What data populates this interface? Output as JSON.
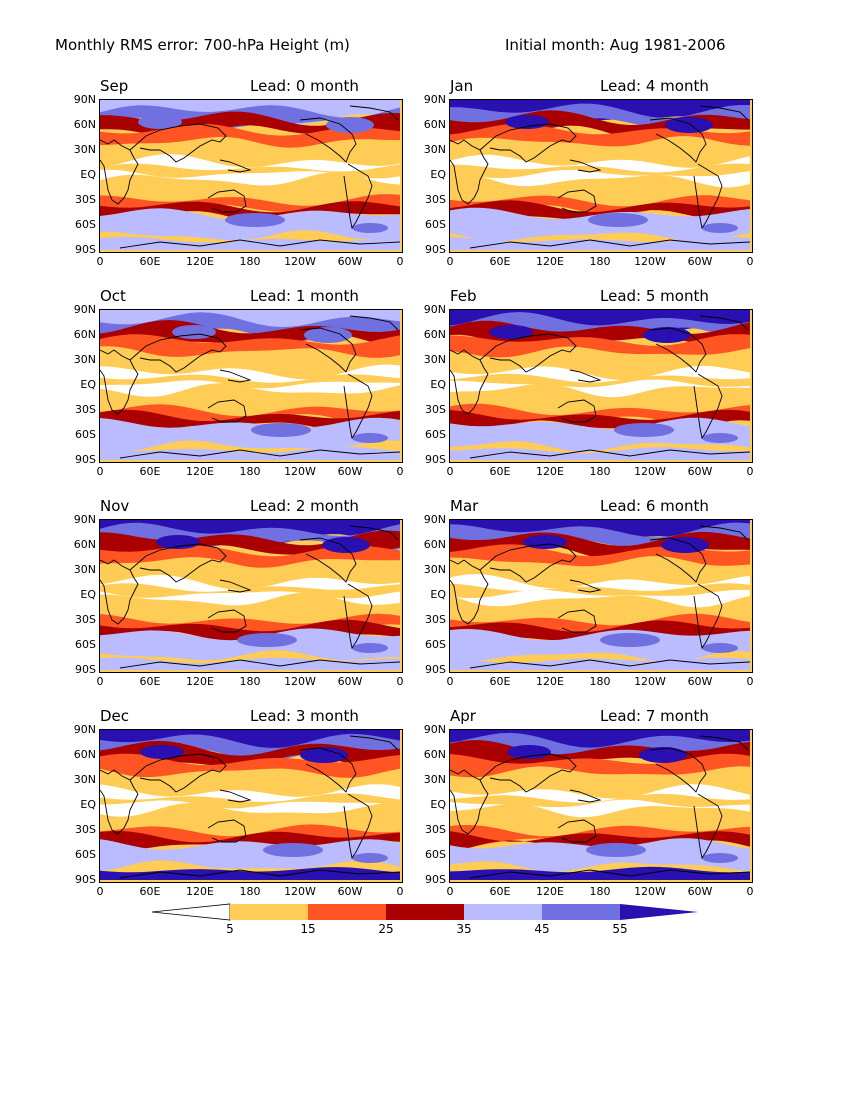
{
  "header": {
    "title_left": "Monthly RMS error: 700-hPa Height (m)",
    "title_right": "Initial month: Aug 1981-2006"
  },
  "axes": {
    "lat_labels": [
      "90N",
      "60N",
      "30N",
      "EQ",
      "30S",
      "60S",
      "90S"
    ],
    "lon_labels": [
      "0",
      "60E",
      "120E",
      "180",
      "120W",
      "60W",
      "0"
    ]
  },
  "panels": [
    {
      "month": "Sep",
      "lead": "Lead: 0 month"
    },
    {
      "month": "Jan",
      "lead": "Lead: 4 month"
    },
    {
      "month": "Oct",
      "lead": "Lead: 1 month"
    },
    {
      "month": "Feb",
      "lead": "Lead: 5 month"
    },
    {
      "month": "Nov",
      "lead": "Lead: 2 month"
    },
    {
      "month": "Mar",
      "lead": "Lead: 6 month"
    },
    {
      "month": "Dec",
      "lead": "Lead: 3 month"
    },
    {
      "month": "Apr",
      "lead": "Lead: 7 month"
    }
  ],
  "colorbar": {
    "labels": [
      "5",
      "15",
      "25",
      "35",
      "45",
      "55"
    ],
    "colors": [
      "#ffffff",
      "#ffcc55",
      "#ff5522",
      "#aa0000",
      "#bbbbff",
      "#7070e0",
      "#2a10b0"
    ]
  }
}
